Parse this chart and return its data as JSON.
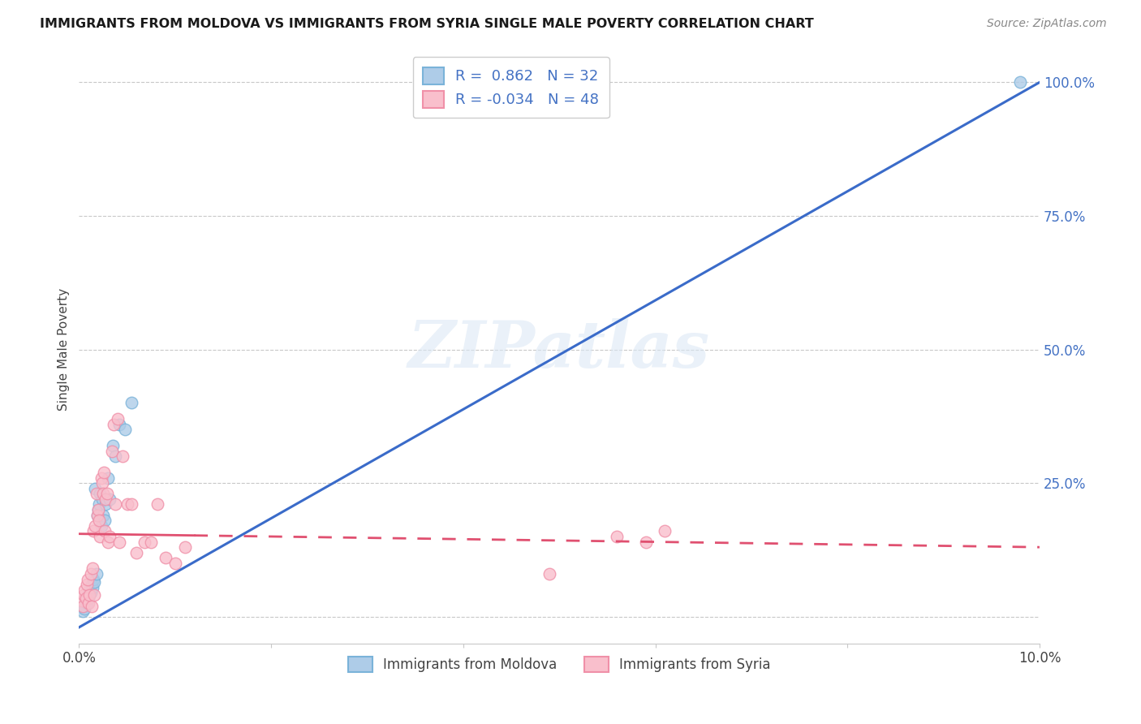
{
  "title": "IMMIGRANTS FROM MOLDOVA VS IMMIGRANTS FROM SYRIA SINGLE MALE POVERTY CORRELATION CHART",
  "source": "Source: ZipAtlas.com",
  "ylabel": "Single Male Poverty",
  "legend_moldova": "Immigrants from Moldova",
  "legend_syria": "Immigrants from Syria",
  "moldova_R": "0.862",
  "moldova_N": "32",
  "syria_R": "-0.034",
  "syria_N": "48",
  "moldova_color": "#7ab3d9",
  "moldova_fill": "#aecce8",
  "syria_color": "#f090a8",
  "syria_fill": "#f9bfcc",
  "line_moldova_color": "#3a6bc9",
  "line_syria_color": "#e05070",
  "watermark": "ZIPatlas",
  "xlim": [
    0.0,
    10.0
  ],
  "ylim": [
    -5.0,
    105.0
  ],
  "yticks": [
    0.0,
    25.0,
    50.0,
    75.0,
    100.0
  ],
  "ytick_labels": [
    "",
    "25.0%",
    "50.0%",
    "75.0%",
    "100.0%"
  ],
  "xticks": [
    0.0,
    2.0,
    4.0,
    6.0,
    8.0,
    10.0
  ],
  "xtick_labels": [
    "0.0%",
    "",
    "",
    "",
    "",
    "10.0%"
  ],
  "moldova_x": [
    0.04,
    0.05,
    0.06,
    0.07,
    0.08,
    0.09,
    0.1,
    0.11,
    0.12,
    0.13,
    0.14,
    0.15,
    0.16,
    0.17,
    0.18,
    0.19,
    0.2,
    0.21,
    0.22,
    0.23,
    0.24,
    0.25,
    0.27,
    0.28,
    0.3,
    0.32,
    0.35,
    0.38,
    0.42,
    0.48,
    0.55,
    9.8
  ],
  "moldova_y": [
    1.0,
    2.0,
    1.5,
    3.0,
    2.5,
    4.0,
    3.5,
    5.0,
    4.5,
    6.0,
    5.5,
    7.0,
    6.5,
    24.0,
    8.0,
    19.0,
    20.0,
    21.0,
    23.0,
    17.0,
    22.0,
    19.0,
    18.0,
    21.0,
    26.0,
    22.0,
    32.0,
    30.0,
    36.0,
    35.0,
    40.0,
    100.0
  ],
  "syria_x": [
    0.03,
    0.04,
    0.05,
    0.06,
    0.07,
    0.08,
    0.09,
    0.1,
    0.11,
    0.12,
    0.13,
    0.14,
    0.15,
    0.16,
    0.17,
    0.18,
    0.19,
    0.2,
    0.21,
    0.22,
    0.23,
    0.24,
    0.25,
    0.26,
    0.27,
    0.28,
    0.29,
    0.3,
    0.32,
    0.34,
    0.36,
    0.38,
    0.4,
    0.42,
    0.45,
    0.5,
    0.55,
    0.6,
    0.68,
    0.75,
    0.82,
    0.9,
    1.0,
    1.1,
    4.9,
    5.6,
    5.9,
    6.1
  ],
  "syria_y": [
    3.0,
    2.0,
    4.0,
    5.0,
    3.5,
    6.0,
    7.0,
    2.5,
    4.0,
    8.0,
    2.0,
    9.0,
    16.0,
    4.0,
    17.0,
    23.0,
    19.0,
    20.0,
    18.0,
    15.0,
    26.0,
    25.0,
    23.0,
    27.0,
    16.0,
    22.0,
    23.0,
    14.0,
    15.0,
    31.0,
    36.0,
    21.0,
    37.0,
    14.0,
    30.0,
    21.0,
    21.0,
    12.0,
    14.0,
    14.0,
    21.0,
    11.0,
    10.0,
    13.0,
    8.0,
    15.0,
    14.0,
    16.0
  ],
  "moldova_line_x0": 0.0,
  "moldova_line_y0": -2.0,
  "moldova_line_x1": 10.0,
  "moldova_line_y1": 100.0,
  "syria_line_x0": 0.0,
  "syria_line_y0": 15.5,
  "syria_line_x1": 10.0,
  "syria_line_y1": 13.0,
  "syria_solid_end_x": 1.2,
  "syria_dashed_start_x": 1.2
}
